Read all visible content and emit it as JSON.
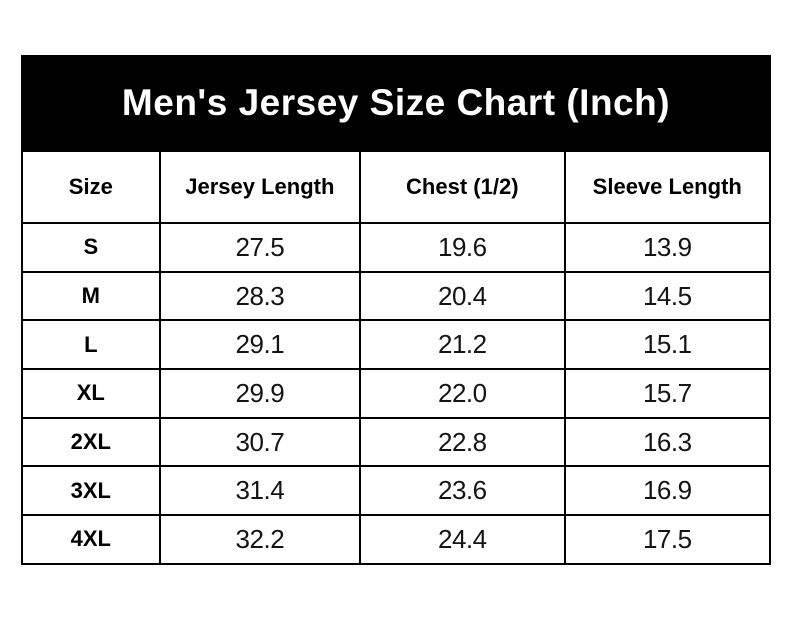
{
  "title": "Men's Jersey Size Chart (Inch)",
  "colors": {
    "band_background": "#000000",
    "band_text": "#ffffff",
    "border": "#000000",
    "cell_background": "#ffffff",
    "cell_text": "#000000"
  },
  "table": {
    "headers": [
      "Size",
      "Jersey Length",
      "Chest (1/2)",
      "Sleeve Length"
    ],
    "rows": [
      {
        "size": "S",
        "jersey_length": "27.5",
        "chest_half": "19.6",
        "sleeve_length": "13.9"
      },
      {
        "size": "M",
        "jersey_length": "28.3",
        "chest_half": "20.4",
        "sleeve_length": "14.5"
      },
      {
        "size": "L",
        "jersey_length": "29.1",
        "chest_half": "21.2",
        "sleeve_length": "15.1"
      },
      {
        "size": "XL",
        "jersey_length": "29.9",
        "chest_half": "22.0",
        "sleeve_length": "15.7"
      },
      {
        "size": "2XL",
        "jersey_length": "30.7",
        "chest_half": "22.8",
        "sleeve_length": "16.3"
      },
      {
        "size": "3XL",
        "jersey_length": "31.4",
        "chest_half": "23.6",
        "sleeve_length": "16.9"
      },
      {
        "size": "4XL",
        "jersey_length": "32.2",
        "chest_half": "24.4",
        "sleeve_length": "17.5"
      }
    ]
  },
  "chart_data": {
    "type": "table",
    "title": "Men's Jersey Size Chart (Inch)",
    "units": "inch",
    "columns": [
      "Size",
      "Jersey Length",
      "Chest (1/2)",
      "Sleeve Length"
    ],
    "rows": [
      [
        "S",
        "27.5",
        "19.6",
        "13.9"
      ],
      [
        "M",
        "28.3",
        "20.4",
        "14.5"
      ],
      [
        "L",
        "29.1",
        "21.2",
        "15.1"
      ],
      [
        "XL",
        "29.9",
        "22.0",
        "15.7"
      ],
      [
        "2XL",
        "30.7",
        "22.8",
        "16.3"
      ],
      [
        "3XL",
        "31.4",
        "23.6",
        "16.9"
      ],
      [
        "4XL",
        "32.2",
        "24.4",
        "17.5"
      ]
    ]
  }
}
